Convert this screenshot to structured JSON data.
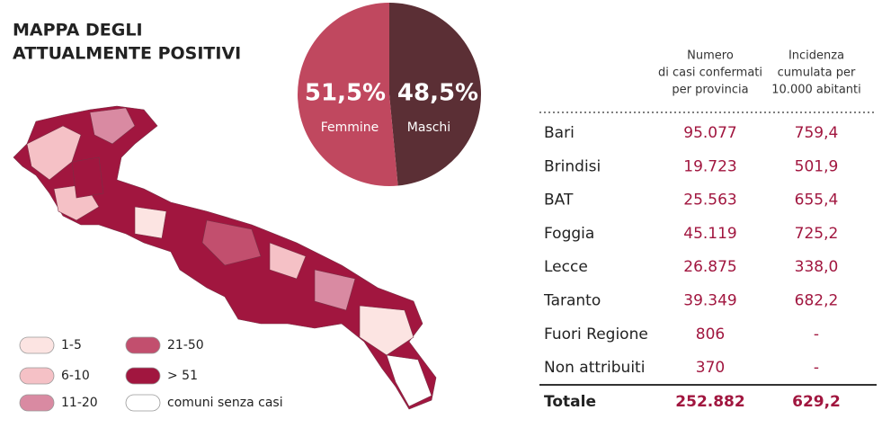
{
  "map": {
    "title_lines": [
      "MAPPA DEGLI",
      "ATTUALMENTE POSITIVI"
    ],
    "legend": [
      {
        "label": "1-5",
        "color": "#fce4e2"
      },
      {
        "label": "6-10",
        "color": "#f5c1c6"
      },
      {
        "label": "11-20",
        "color": "#d98aa2"
      },
      {
        "label": "21-50",
        "color": "#c24f6e"
      },
      {
        "label": "> 51",
        "color": "#a1163f"
      },
      {
        "label": "comuni senza casi",
        "color": "#ffffff"
      }
    ]
  },
  "chart_data": {
    "type": "pie",
    "categories": [
      "Femmine",
      "Maschi"
    ],
    "values": [
      51.5,
      48.5
    ],
    "value_labels": [
      "51,5%",
      "48,5%"
    ],
    "colors": [
      "#c0485f",
      "#5b2f35"
    ]
  },
  "table": {
    "headers": [
      [
        "Numero",
        "di casi confermati",
        "per provincia"
      ],
      [
        "Incidenza",
        "cumulata per",
        "10.000 abitanti"
      ]
    ],
    "rows": [
      [
        "Bari",
        "95.077",
        "759,4"
      ],
      [
        "Brindisi",
        "19.723",
        "501,9"
      ],
      [
        "BAT",
        "25.563",
        "655,4"
      ],
      [
        "Foggia",
        "45.119",
        "725,2"
      ],
      [
        "Lecce",
        "26.875",
        "338,0"
      ],
      [
        "Taranto",
        "39.349",
        "682,2"
      ],
      [
        "Fuori Regione",
        "806",
        "-"
      ],
      [
        "Non attribuiti",
        "370",
        "-"
      ]
    ],
    "total": [
      "Totale",
      "252.882",
      "629,2"
    ]
  }
}
